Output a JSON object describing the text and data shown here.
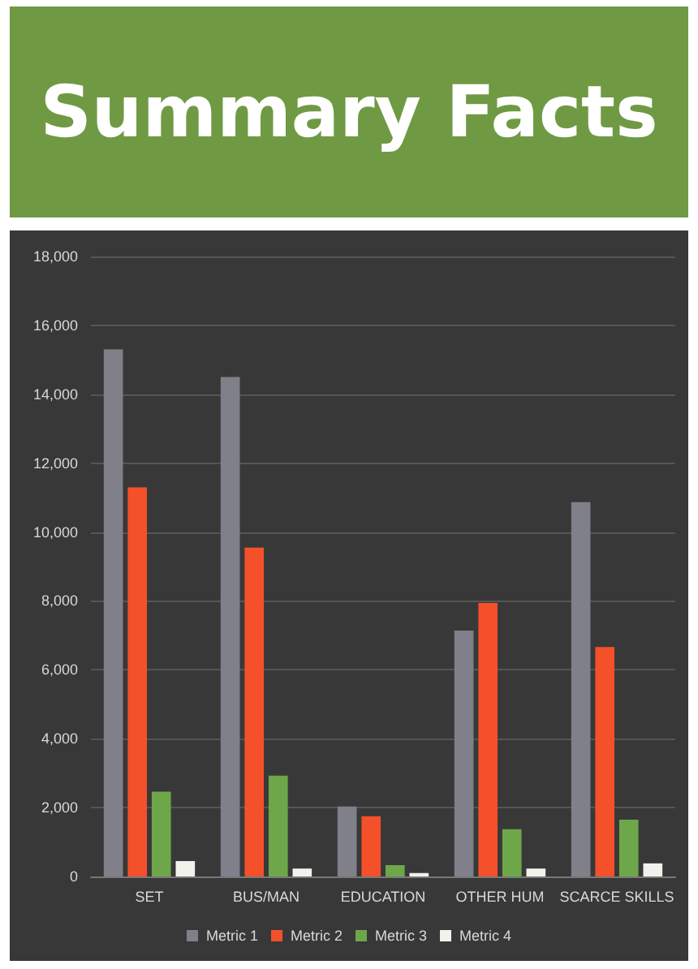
{
  "chart_data": {
    "type": "bar",
    "title": "Summary Facts",
    "categories": [
      "SET",
      "BUS/MAN",
      "EDUCATION",
      "OTHER HUM",
      "SCARCE SKILLS"
    ],
    "series": [
      {
        "name": "Metric 1",
        "color": "#80808a",
        "values": [
          15300,
          14500,
          2030,
          7140,
          10870
        ]
      },
      {
        "name": "Metric 2",
        "color": "#f4502a",
        "values": [
          11300,
          9550,
          1750,
          7940,
          6660
        ]
      },
      {
        "name": "Metric 3",
        "color": "#6ea64a",
        "values": [
          2460,
          2930,
          330,
          1370,
          1650
        ]
      },
      {
        "name": "Metric 4",
        "color": "#f2f2ec",
        "values": [
          450,
          230,
          100,
          230,
          380
        ]
      }
    ],
    "ylim": [
      0,
      18000
    ],
    "yticks": [
      0,
      {
        "value": 2000,
        "label": "2,000"
      },
      {
        "value": 4000,
        "label": "4,000"
      },
      {
        "value": 6000,
        "label": "6,000"
      },
      {
        "value": 8000,
        "label": "8,000"
      },
      {
        "value": 10000,
        "label": "10,000"
      },
      {
        "value": 12000,
        "label": "12,000"
      },
      {
        "value": 14000,
        "label": "14,000"
      },
      {
        "value": 16000,
        "label": "16,000"
      },
      {
        "value": 18000,
        "label": "18,000"
      }
    ],
    "grid": "y",
    "legend": "bottom"
  }
}
